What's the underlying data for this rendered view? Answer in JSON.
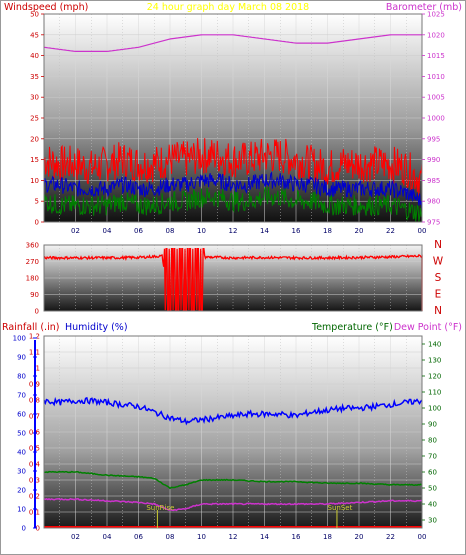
{
  "title": "24 hour graph day   March 08 2018",
  "colors": {
    "wind_avg": "#0000cc",
    "wind_gust": "#ff0000",
    "wind_low": "#008000",
    "barometer": "#cc33cc",
    "direction": "#ff0000",
    "humidity": "#0000ff",
    "temperature": "#008000",
    "dewpoint": "#cc33cc",
    "rain": "#ff0000",
    "sun_label": "#cccc33",
    "title": "#ffff00",
    "left_axis_wind": "#cc0000",
    "right_axis_baro": "#cc33cc"
  },
  "chart_data": [
    {
      "type": "line",
      "ylabel": "Windspeed (mph)",
      "y2label": "Barometer (mb)",
      "ylim": [
        0,
        50
      ],
      "y2lim": [
        975,
        1025
      ],
      "y_ticks": [
        "0",
        "5",
        "10",
        "15",
        "20",
        "25",
        "30",
        "35",
        "40",
        "45",
        "50"
      ],
      "y2_ticks": [
        "975",
        "980",
        "985",
        "990",
        "995",
        "1000",
        "1005",
        "1010",
        "1015",
        "1020",
        "1025"
      ],
      "x_ticks": [
        "02",
        "04",
        "06",
        "08",
        "10",
        "12",
        "14",
        "16",
        "18",
        "20",
        "22",
        "00"
      ],
      "xlim": [
        0,
        24
      ],
      "grid": true,
      "series": [
        {
          "x": [
            0,
            1,
            2,
            3,
            4,
            5,
            6,
            7,
            8,
            9,
            10,
            11,
            12,
            13,
            14,
            15,
            16,
            17,
            18,
            19,
            20,
            21,
            22,
            23,
            24
          ],
          "values": [
            15,
            14,
            14,
            13,
            14,
            15,
            14,
            14,
            15,
            15,
            16,
            16,
            15,
            15,
            16,
            16,
            15,
            14,
            13,
            14,
            14,
            14,
            14,
            13,
            10
          ]
        },
        {
          "x": [
            0,
            1,
            2,
            3,
            4,
            5,
            6,
            7,
            8,
            9,
            10,
            11,
            12,
            13,
            14,
            15,
            16,
            17,
            18,
            19,
            20,
            21,
            22,
            23,
            24
          ],
          "values": [
            9,
            9,
            8,
            8,
            8,
            9,
            8,
            8,
            9,
            9,
            10,
            10,
            9,
            9,
            10,
            10,
            9,
            9,
            8,
            8,
            8,
            8,
            8,
            7,
            5
          ]
        },
        {
          "x": [
            0,
            1,
            2,
            3,
            4,
            5,
            6,
            7,
            8,
            9,
            10,
            11,
            12,
            13,
            14,
            15,
            16,
            17,
            18,
            19,
            20,
            21,
            22,
            23,
            24
          ],
          "values": [
            5,
            4,
            4,
            4,
            4,
            5,
            4,
            4,
            5,
            5,
            6,
            6,
            5,
            5,
            6,
            6,
            5,
            5,
            4,
            4,
            4,
            4,
            4,
            3,
            2
          ]
        },
        {
          "x": [
            0,
            2,
            4,
            6,
            8,
            10,
            12,
            14,
            16,
            18,
            20,
            22,
            24
          ],
          "values": [
            1017,
            1016,
            1016,
            1017,
            1019,
            1020,
            1020,
            1019,
            1018,
            1018,
            1019,
            1020,
            1020
          ]
        }
      ]
    },
    {
      "type": "line",
      "ylim": [
        0,
        360
      ],
      "y_ticks": [
        "0",
        "90",
        "180",
        "270",
        "360"
      ],
      "dir_labels": [
        "N",
        "W",
        "S",
        "E",
        "N"
      ],
      "xlim": [
        0,
        24
      ],
      "grid": true,
      "series": [
        {
          "x": [
            0,
            2,
            4,
            6,
            7.5,
            8,
            8.5,
            9,
            9.5,
            10,
            12,
            14,
            16,
            18,
            20,
            22,
            24
          ],
          "values": [
            290,
            290,
            290,
            292,
            300,
            10,
            320,
            15,
            300,
            295,
            290,
            292,
            290,
            290,
            292,
            295,
            300
          ]
        }
      ]
    },
    {
      "type": "line",
      "ylabel": "Rainfall (.in)",
      "y_humidity_label": "Humidity (%)",
      "y2label": "Temperature (°F)",
      "y3label": "Dew Point (°F)",
      "rain_ticks": [
        "0",
        "0.1",
        "0.2",
        "0.3",
        "0.4",
        "0.5",
        "0.6",
        "0.7",
        "0.8",
        "0.9",
        "1",
        "1.1",
        "1.2"
      ],
      "humidity_ticks": [
        "0",
        "10",
        "20",
        "30",
        "40",
        "50",
        "60",
        "70",
        "80",
        "90",
        "100"
      ],
      "temp_ticks": [
        "30",
        "40",
        "50",
        "60",
        "70",
        "80",
        "90",
        "100",
        "110",
        "120",
        "130",
        "140"
      ],
      "xlim": [
        0,
        24
      ],
      "x_ticks": [
        "02",
        "04",
        "06",
        "08",
        "10",
        "12",
        "14",
        "16",
        "18",
        "20",
        "22",
        "00"
      ],
      "grid": true,
      "annotations": [
        {
          "text": "SunRise",
          "x": 7.2
        },
        {
          "text": "SunSet",
          "x": 18.6
        }
      ],
      "series": [
        {
          "x": [
            0,
            1,
            2,
            3,
            4,
            5,
            6,
            7,
            8,
            9,
            10,
            11,
            12,
            13,
            14,
            15,
            16,
            17,
            18,
            19,
            20,
            21,
            22,
            23,
            24
          ],
          "values": [
            67,
            66,
            67,
            67,
            66,
            65,
            64,
            61,
            58,
            56,
            57,
            58,
            59,
            60,
            60,
            60,
            59,
            61,
            62,
            63,
            63,
            64,
            65,
            66,
            67
          ]
        },
        {
          "x": [
            0,
            2,
            4,
            6,
            7,
            8,
            9,
            10,
            12,
            14,
            16,
            18,
            20,
            22,
            24
          ],
          "values": [
            60,
            60,
            58,
            57,
            56,
            50,
            52,
            55,
            55,
            54,
            54,
            53,
            53,
            52,
            52
          ]
        },
        {
          "x": [
            0,
            2,
            4,
            6,
            7,
            8,
            9,
            10,
            12,
            14,
            16,
            18,
            20,
            22,
            24
          ],
          "values": [
            43,
            43,
            42,
            41,
            40,
            36,
            37,
            40,
            40,
            40,
            40,
            40,
            41,
            42,
            42
          ]
        },
        {
          "x": [
            0,
            24
          ],
          "values": [
            0,
            0
          ]
        }
      ]
    }
  ]
}
